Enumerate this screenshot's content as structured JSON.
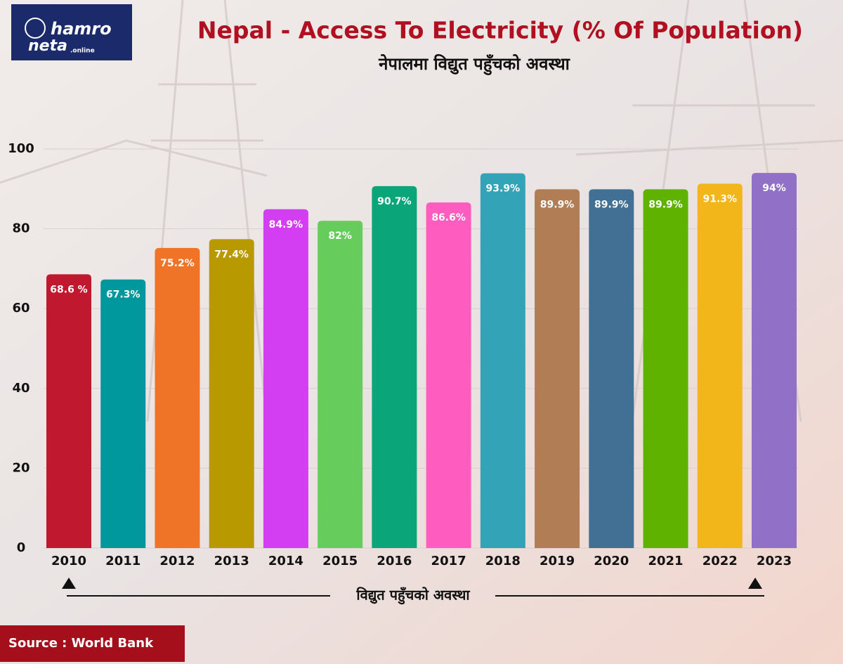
{
  "logo": {
    "line1": "hamro",
    "line2": "neta",
    "suffix": ".online"
  },
  "chart_data": {
    "type": "bar",
    "title": "Nepal - Access To Electricity (% Of Population)",
    "subtitle": "नेपालमा विद्युत पहुँचको अवस्था",
    "annotation": "विद्युत पहुँचको अवस्था",
    "source": "Source : World Bank",
    "categories": [
      "2010",
      "2011",
      "2012",
      "2013",
      "2014",
      "2015",
      "2016",
      "2017",
      "2018",
      "2019",
      "2020",
      "2021",
      "2022",
      "2023"
    ],
    "values": [
      68.6,
      67.3,
      75.2,
      77.4,
      84.9,
      82,
      90.7,
      86.6,
      93.9,
      89.9,
      89.9,
      89.9,
      91.3,
      94
    ],
    "value_labels": [
      "68.6 %",
      "67.3%",
      "75.2%",
      "77.4%",
      "84.9%",
      "82%",
      "90.7%",
      "86.6%",
      "93.9%",
      "89.9%",
      "89.9%",
      "89.9%",
      "91.3%",
      "94%"
    ],
    "colors": [
      "#c0192f",
      "#00979d",
      "#f07427",
      "#b89a00",
      "#d43ef2",
      "#66cc5c",
      "#0aa67a",
      "#ff5cc0",
      "#33a4b8",
      "#b07d54",
      "#417094",
      "#5fb300",
      "#f2b51a",
      "#9170c7"
    ],
    "ylim": [
      0,
      100
    ],
    "yticks": [
      0,
      20,
      40,
      60,
      80,
      100
    ],
    "grid": true
  }
}
